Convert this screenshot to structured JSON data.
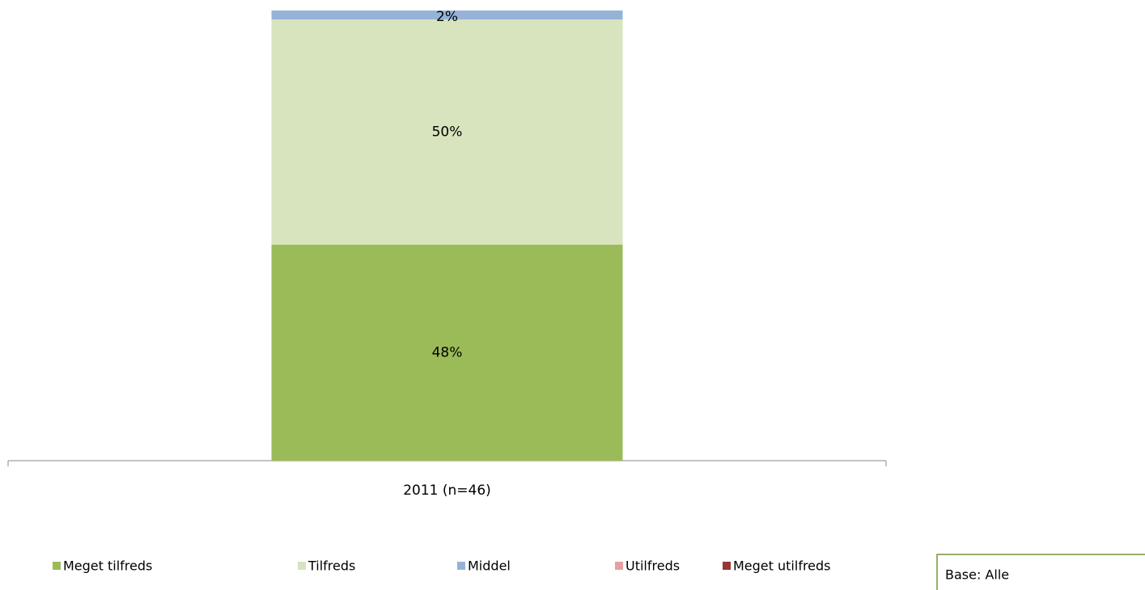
{
  "chart_data": {
    "type": "stacked_bar",
    "categories": [
      "2011 (n=46)"
    ],
    "series": [
      {
        "name": "Meget tilfreds",
        "color": "#9bbb59",
        "values": [
          48
        ],
        "value_labels": [
          "48%"
        ]
      },
      {
        "name": "Tilfreds",
        "color": "#d7e4bd",
        "values": [
          50
        ],
        "value_labels": [
          "50%"
        ]
      },
      {
        "name": "Middel",
        "color": "#95b3d7",
        "values": [
          2
        ],
        "value_labels": [
          "2%"
        ]
      },
      {
        "name": "Utilfreds",
        "color": "#e6a0a0",
        "values": [
          0
        ]
      },
      {
        "name": "Meget utilfreds",
        "color": "#953735",
        "values": [
          0
        ]
      }
    ],
    "ylim": [
      0,
      100
    ],
    "annotation": "Base: Alle"
  }
}
